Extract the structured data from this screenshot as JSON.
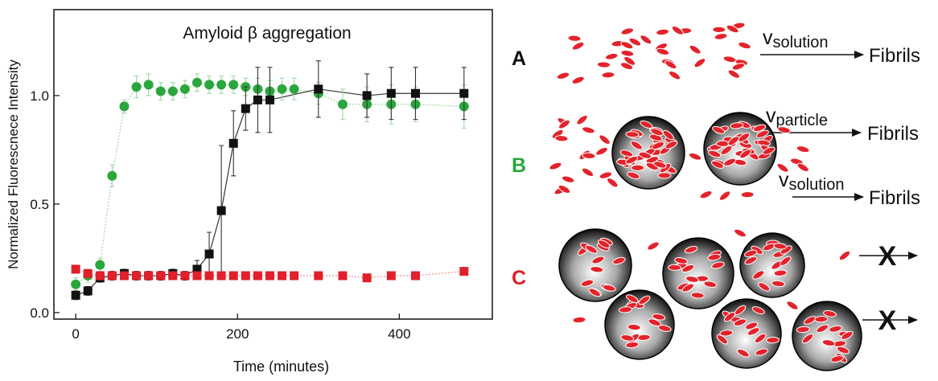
{
  "chart_data": {
    "type": "scatter",
    "title": "Amyloid β aggregation",
    "x_label": "Time (minutes)",
    "y_label": "Normalized Fluorescnece Intensity",
    "xlim": [
      -27,
      515
    ],
    "ylim": [
      -0.03,
      1.396
    ],
    "xticks": [
      0,
      200,
      400
    ],
    "yticks": [
      {
        "value": 0,
        "label": "0.0"
      },
      0.5,
      {
        "value": 1,
        "label": "1.0"
      }
    ],
    "series": [
      {
        "color": "#2aa63c",
        "line_color": "#9fd8a2",
        "marker": "circle",
        "line_style": "dotted",
        "x": [
          0,
          15,
          30,
          45,
          60,
          75,
          90,
          105,
          120,
          135,
          150,
          165,
          180,
          195,
          210,
          225,
          240,
          255,
          270,
          300,
          330,
          360,
          390,
          420,
          480
        ],
        "values": [
          0.13,
          0.17,
          0.22,
          0.63,
          0.95,
          1.04,
          1.05,
          1.02,
          1.02,
          1.03,
          1.06,
          1.05,
          1.05,
          1.05,
          1.04,
          1.03,
          1.02,
          1.03,
          1.03,
          1.01,
          0.96,
          0.96,
          0.96,
          0.96,
          0.95
        ],
        "errors": [
          0.03,
          0.03,
          0.03,
          0.05,
          0.03,
          0.05,
          0.05,
          0.04,
          0.04,
          0.04,
          0.04,
          0.04,
          0.04,
          0.04,
          0.04,
          0.05,
          0.05,
          0.05,
          0.05,
          0.05,
          0.07,
          0.08,
          0.09,
          0.08,
          0.1
        ]
      },
      {
        "color": "#111111",
        "line_color": "#333333",
        "marker": "square",
        "line_style": "solid",
        "x": [
          0,
          15,
          30,
          45,
          60,
          75,
          90,
          105,
          120,
          135,
          150,
          165,
          180,
          195,
          210,
          225,
          240,
          300,
          360,
          390,
          420,
          480
        ],
        "values": [
          0.08,
          0.1,
          0.16,
          0.17,
          0.18,
          0.17,
          0.17,
          0.17,
          0.18,
          0.17,
          0.2,
          0.27,
          0.47,
          0.78,
          0.94,
          0.98,
          0.98,
          1.03,
          1.0,
          1.01,
          1.01,
          1.01
        ],
        "errors": [
          0.02,
          0.02,
          0.02,
          0.02,
          0.02,
          0.02,
          0.02,
          0.02,
          0.02,
          0.02,
          0.04,
          0.1,
          0.3,
          0.15,
          0.1,
          0.15,
          0.15,
          0.13,
          0.1,
          0.12,
          0.12,
          0.12
        ]
      },
      {
        "color": "#e0202a",
        "line_color": "#ee8a8a",
        "marker": "square",
        "line_style": "dotted",
        "x": [
          0,
          15,
          30,
          45,
          60,
          75,
          90,
          105,
          120,
          135,
          150,
          165,
          180,
          195,
          210,
          225,
          240,
          255,
          270,
          300,
          330,
          360,
          390,
          420,
          480
        ],
        "values": [
          0.2,
          0.18,
          0.17,
          0.17,
          0.17,
          0.17,
          0.17,
          0.17,
          0.17,
          0.17,
          0.17,
          0.17,
          0.17,
          0.17,
          0.17,
          0.17,
          0.17,
          0.17,
          0.17,
          0.17,
          0.17,
          0.16,
          0.17,
          0.17,
          0.19
        ],
        "errors": [
          0.01,
          0.01,
          0.01,
          0.01,
          0.01,
          0.01,
          0.01,
          0.01,
          0.01,
          0.01,
          0.01,
          0.01,
          0.01,
          0.01,
          0.01,
          0.01,
          0.01,
          0.01,
          0.01,
          0.01,
          0.01,
          0.01,
          0.01,
          0.01,
          0.01
        ]
      }
    ]
  },
  "diagram": {
    "rows": [
      {
        "label": "A",
        "color": "#111111",
        "arrows": [
          {
            "v": "v",
            "sub": "solution",
            "target": "Fibrils"
          }
        ]
      },
      {
        "label": "B",
        "color": "#2aa63c",
        "arrows": [
          {
            "v": "v",
            "sub": "particle",
            "target": "Fibrils"
          },
          {
            "v": "v",
            "sub": "solution",
            "target": "Fibrils"
          }
        ]
      },
      {
        "label": "C",
        "color": "#e0202a",
        "blocked": [
          "X",
          "X"
        ]
      }
    ]
  }
}
